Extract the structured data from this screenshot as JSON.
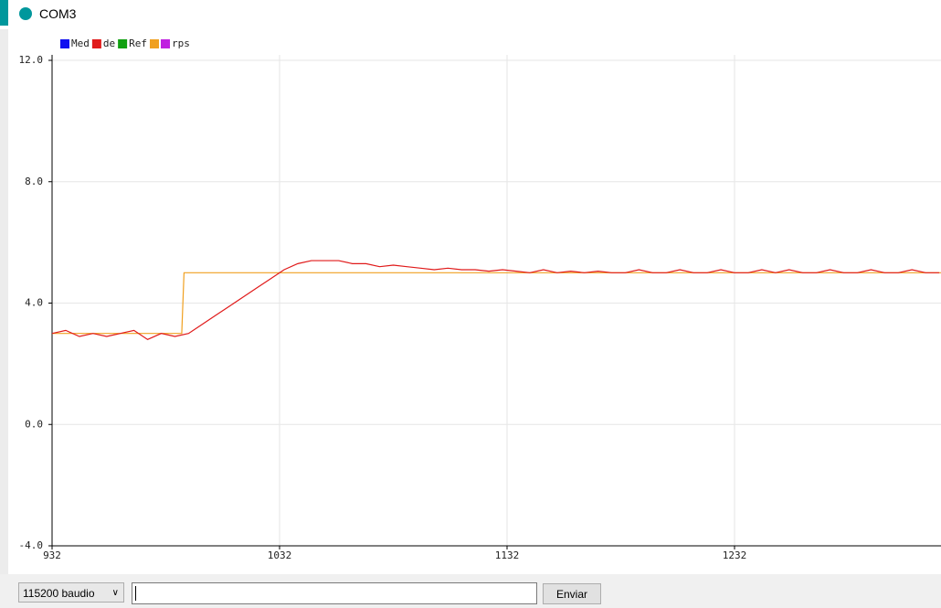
{
  "window": {
    "title": "COM3"
  },
  "chart_data": {
    "type": "line",
    "x_scale": "linear",
    "xlim": [
      932,
      1323
    ],
    "xticks": [
      932,
      1032,
      1132,
      1232
    ],
    "ylim": [
      -4,
      12
    ],
    "yticks": [
      {
        "value": -4,
        "label": "-4.0"
      },
      {
        "value": 0,
        "label": "0.0"
      },
      {
        "value": 4,
        "label": "4.0"
      },
      {
        "value": 8,
        "label": "8.0"
      },
      {
        "value": 12,
        "label": "12.0"
      }
    ],
    "grid": true,
    "legend": "top-left",
    "series": [
      {
        "name": "Med",
        "color": "#1010f0"
      },
      {
        "name": "de",
        "color": "#e01a1a",
        "x": [
          932,
          938,
          944,
          950,
          956,
          962,
          968,
          974,
          980,
          986,
          992,
          998,
          1004,
          1010,
          1016,
          1022,
          1028,
          1034,
          1040,
          1046,
          1052,
          1058,
          1064,
          1070,
          1076,
          1082,
          1088,
          1094,
          1100,
          1106,
          1112,
          1118,
          1124,
          1130,
          1136,
          1142,
          1148,
          1154,
          1160,
          1166,
          1172,
          1178,
          1184,
          1190,
          1196,
          1202,
          1208,
          1214,
          1220,
          1226,
          1232,
          1238,
          1244,
          1250,
          1256,
          1262,
          1268,
          1274,
          1280,
          1286,
          1292,
          1298,
          1304,
          1310,
          1316,
          1322
        ],
        "values": [
          3.0,
          3.1,
          2.9,
          3.0,
          2.9,
          3.0,
          3.1,
          2.8,
          3.0,
          2.9,
          3.0,
          3.3,
          3.6,
          3.9,
          4.2,
          4.5,
          4.8,
          5.1,
          5.3,
          5.4,
          5.4,
          5.4,
          5.3,
          5.3,
          5.2,
          5.25,
          5.2,
          5.15,
          5.1,
          5.15,
          5.1,
          5.1,
          5.05,
          5.1,
          5.05,
          5.0,
          5.1,
          5.0,
          5.05,
          5.0,
          5.05,
          5.0,
          5.0,
          5.1,
          5.0,
          5.0,
          5.1,
          5.0,
          5.0,
          5.1,
          5.0,
          5.0,
          5.1,
          5.0,
          5.1,
          5.0,
          5.0,
          5.1,
          5.0,
          5.0,
          5.1,
          5.0,
          5.0,
          5.1,
          5.0,
          5.0
        ]
      },
      {
        "name": "Ref",
        "color": "#10a010"
      },
      {
        "color": "#f0a020",
        "x": [
          932,
          989,
          990,
          1323
        ],
        "values": [
          3,
          3,
          5,
          5
        ]
      },
      {
        "name": "rps",
        "color": "#c020e0"
      }
    ]
  },
  "controls": {
    "baud": "115200 baudio",
    "send": "Enviar"
  }
}
